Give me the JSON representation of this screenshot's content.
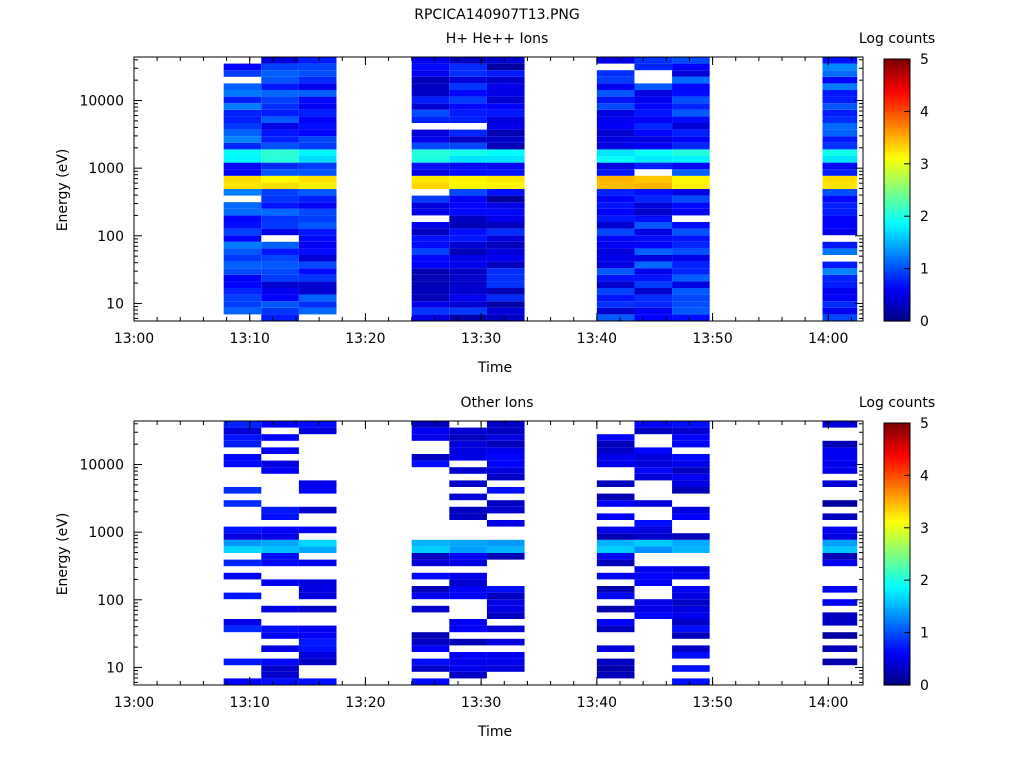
{
  "figure": {
    "title": "RPCICA140907T13.PNG"
  },
  "colors": {
    "colormap": [
      "#00007f",
      "#0000ff",
      "#007fff",
      "#00ffff",
      "#7fff7f",
      "#ffff00",
      "#ff7f00",
      "#ff0000",
      "#7f0000"
    ],
    "axes": "#000000",
    "background": "#ffffff"
  },
  "chart_data": [
    {
      "type": "heatmap",
      "title": "H+ He++ Ions",
      "xlabel": "Time",
      "ylabel": "Energy (eV)",
      "colorbar_label": "Log counts",
      "x_range": [
        "13:00",
        "14:03"
      ],
      "y_range": [
        5.5,
        44000
      ],
      "y_scale": "log",
      "x_ticks": [
        "13:00",
        "13:10",
        "13:20",
        "13:30",
        "13:40",
        "13:50",
        "14:00"
      ],
      "y_ticks": [
        "10",
        "100",
        "1000",
        "10000"
      ],
      "colorbar_range": [
        0,
        5
      ],
      "colorbar_ticks": [
        "0",
        "1",
        "2",
        "3",
        "4",
        "5"
      ],
      "scans": [
        {
          "start": "13:07:45",
          "end": "13:11:00",
          "base": 0.9,
          "texture": "noisy"
        },
        {
          "start": "13:11:00",
          "end": "13:14:15",
          "base": 0.75,
          "texture": "noisy"
        },
        {
          "start": "13:14:15",
          "end": "13:17:30",
          "base": 0.75,
          "texture": "noisy"
        },
        {
          "start": "13:24:00",
          "end": "13:27:15",
          "base": 0.6,
          "texture": "noisy"
        },
        {
          "start": "13:27:15",
          "end": "13:30:30",
          "base": 0.6,
          "texture": "noisy"
        },
        {
          "start": "13:30:30",
          "end": "13:33:45",
          "base": 0.5,
          "texture": "noisy"
        },
        {
          "start": "13:40:00",
          "end": "13:43:15",
          "base": 0.7,
          "texture": "noisy"
        },
        {
          "start": "13:43:15",
          "end": "13:46:30",
          "base": 0.75,
          "texture": "noisy"
        },
        {
          "start": "13:46:30",
          "end": "13:49:45",
          "base": 0.8,
          "texture": "noisy"
        },
        {
          "start": "13:59:30",
          "end": "14:02:30",
          "base": 0.9,
          "texture": "noisy"
        }
      ],
      "features": [
        {
          "energy_range": [
            450,
            800
          ],
          "value": 3.3,
          "label": "peak"
        },
        {
          "energy_range": [
            1150,
            1700
          ],
          "value": 1.9,
          "label": "secondary"
        }
      ]
    },
    {
      "type": "heatmap",
      "title": "Other Ions",
      "xlabel": "Time",
      "ylabel": "Energy (eV)",
      "colorbar_label": "Log counts",
      "x_range": [
        "13:00",
        "14:03"
      ],
      "y_range": [
        5.5,
        44000
      ],
      "y_scale": "log",
      "x_ticks": [
        "13:00",
        "13:10",
        "13:20",
        "13:30",
        "13:40",
        "13:50",
        "14:00"
      ],
      "y_ticks": [
        "10",
        "100",
        "1000",
        "10000"
      ],
      "colorbar_range": [
        0,
        5
      ],
      "colorbar_ticks": [
        "0",
        "1",
        "2",
        "3",
        "4",
        "5"
      ],
      "scans": [
        {
          "start": "13:07:45",
          "end": "13:11:00",
          "base": 0.45,
          "texture": "sparse"
        },
        {
          "start": "13:11:00",
          "end": "13:14:15",
          "base": 0.35,
          "texture": "sparse"
        },
        {
          "start": "13:14:15",
          "end": "13:17:30",
          "base": 0.35,
          "texture": "sparse"
        },
        {
          "start": "13:24:00",
          "end": "13:27:15",
          "base": 0.3,
          "texture": "sparse"
        },
        {
          "start": "13:27:15",
          "end": "13:30:30",
          "base": 0.3,
          "texture": "sparse"
        },
        {
          "start": "13:30:30",
          "end": "13:33:45",
          "base": 0.3,
          "texture": "sparse"
        },
        {
          "start": "13:40:00",
          "end": "13:43:15",
          "base": 0.25,
          "texture": "sparse"
        },
        {
          "start": "13:43:15",
          "end": "13:46:30",
          "base": 0.3,
          "texture": "sparse"
        },
        {
          "start": "13:46:30",
          "end": "13:49:45",
          "base": 0.3,
          "texture": "sparse"
        },
        {
          "start": "13:59:30",
          "end": "14:02:30",
          "base": 0.2,
          "texture": "sparse"
        }
      ],
      "features": [
        {
          "energy_range": [
            550,
            800
          ],
          "value": 1.5,
          "label": "peak"
        }
      ]
    }
  ]
}
